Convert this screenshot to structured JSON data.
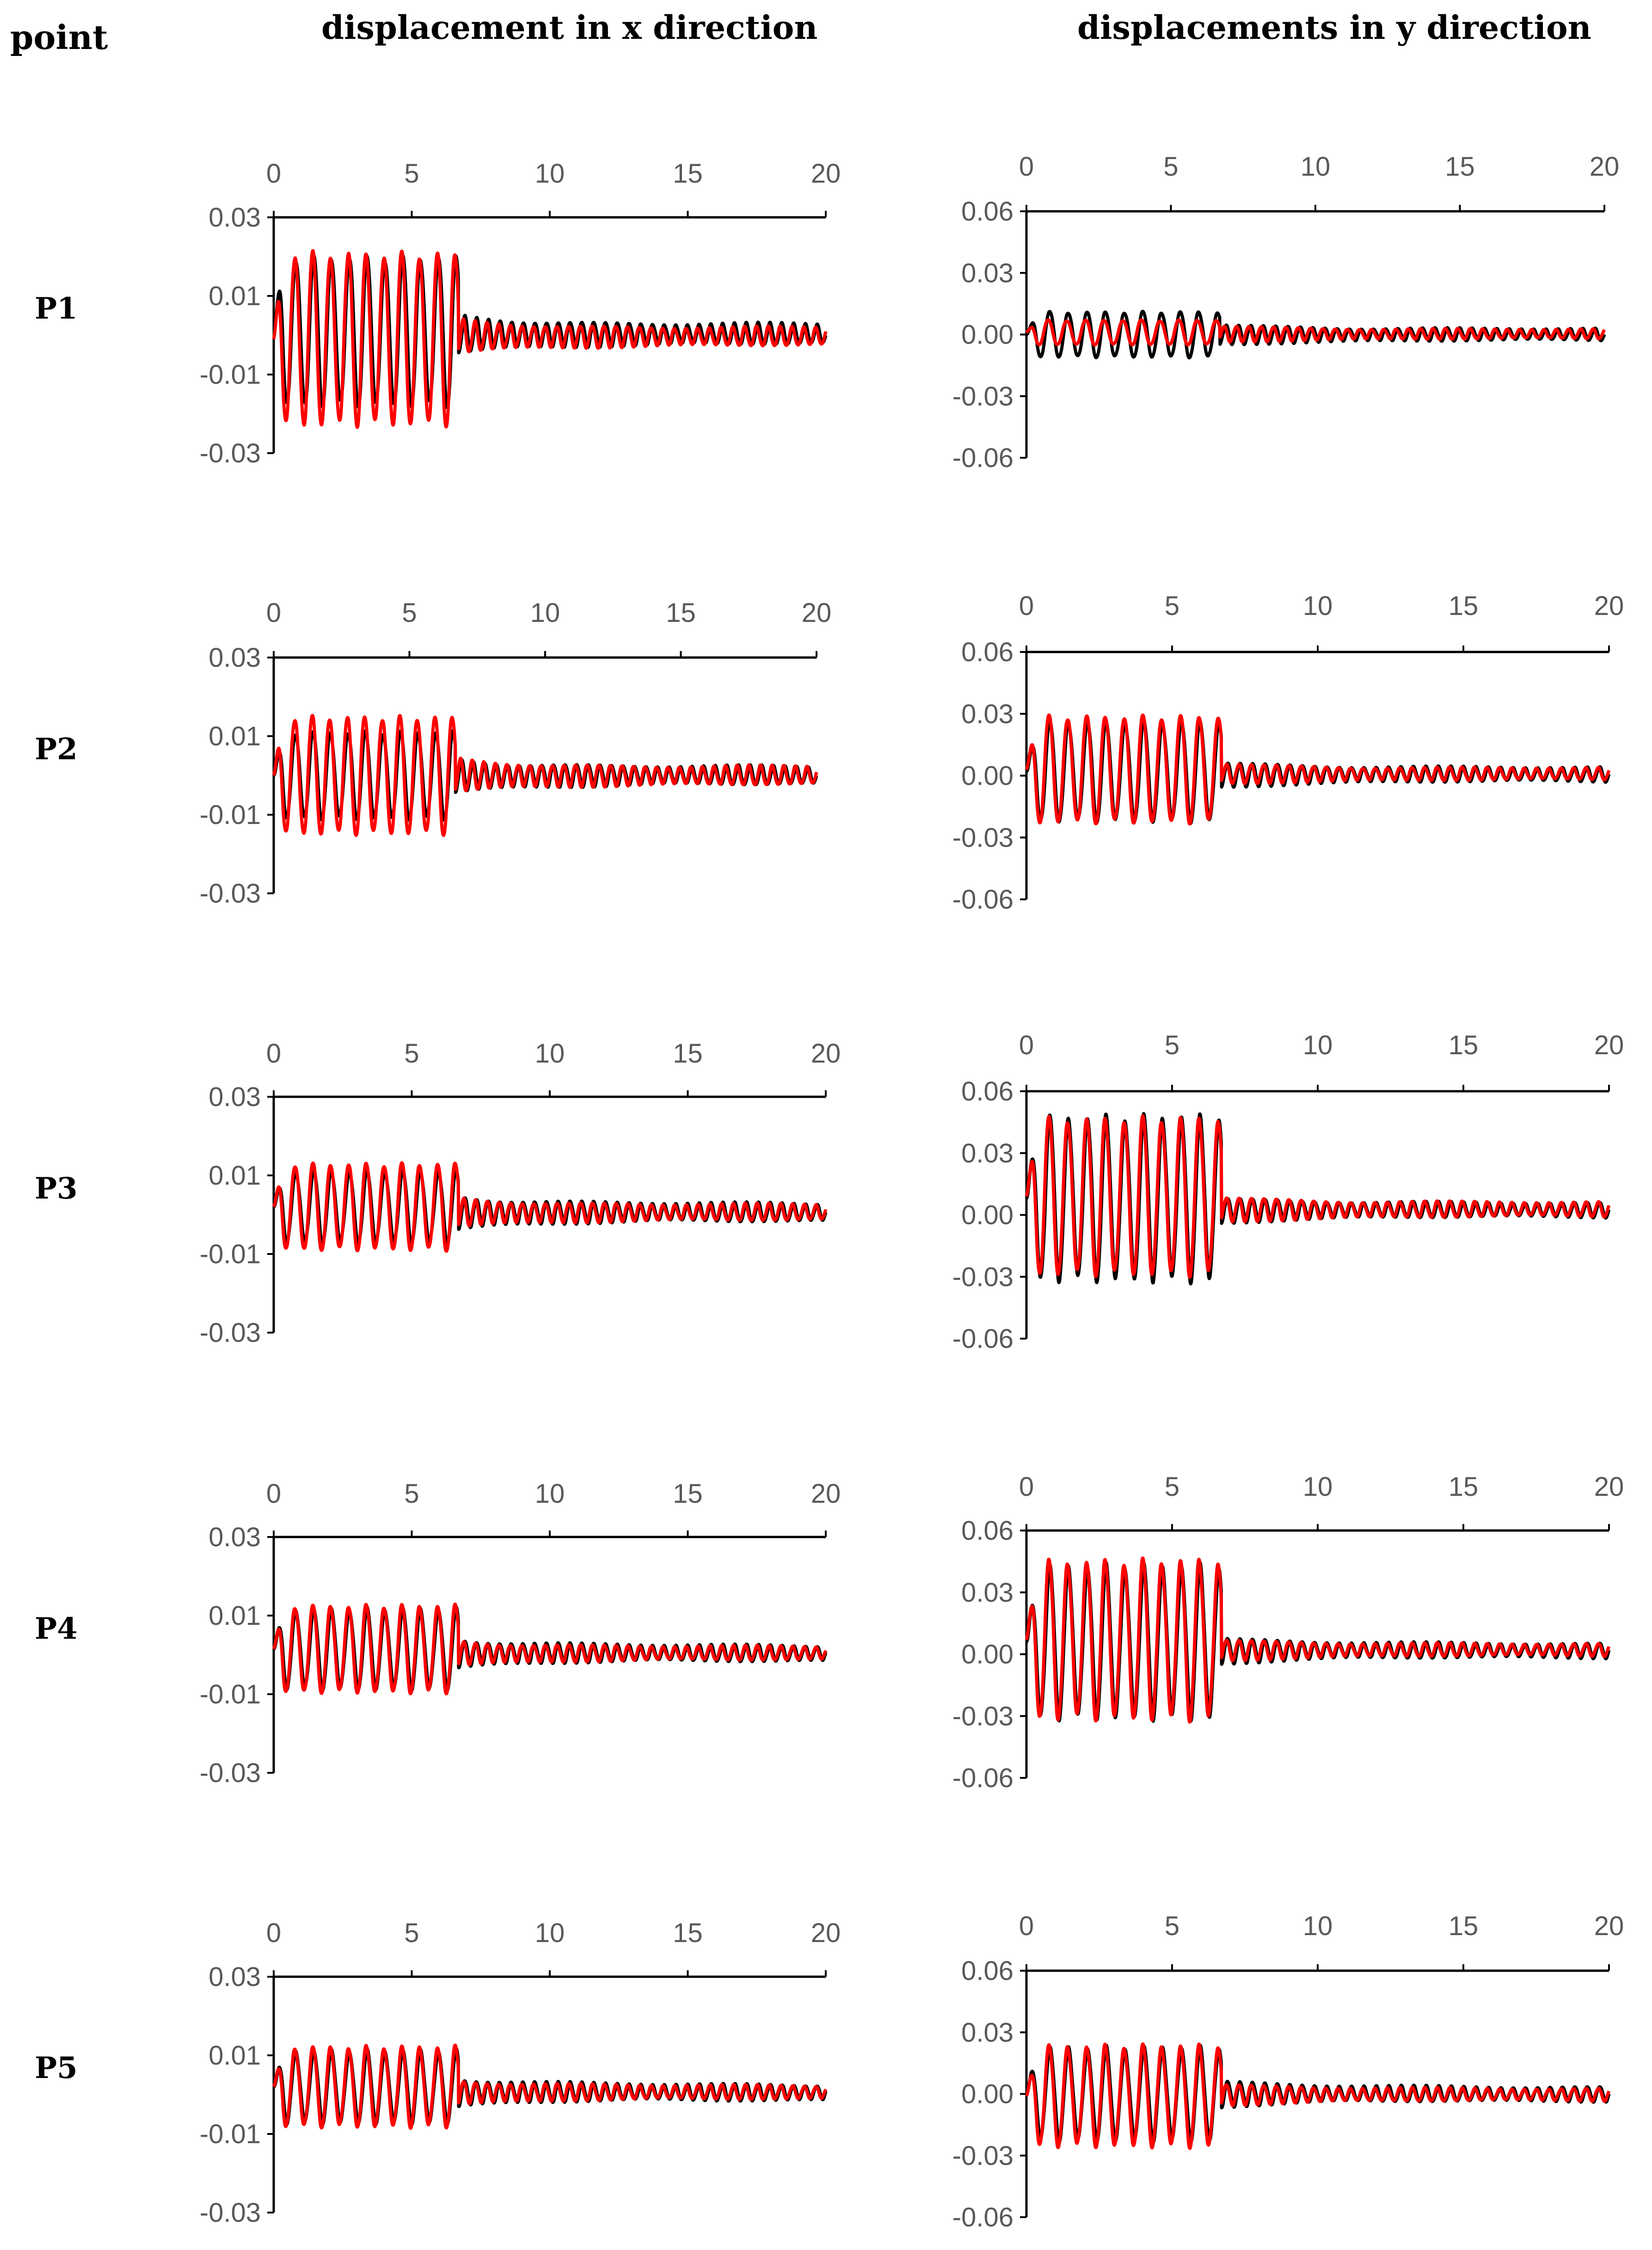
{
  "headers": {
    "point": "point",
    "x": "displacement in x direction",
    "y": "displacements in y direction"
  },
  "colors": {
    "measured": "#000000",
    "computed": "#ff0000",
    "axis": "#000000",
    "tick_text": "#595959"
  },
  "chart_data": [
    {
      "type": "line",
      "point": "P1",
      "component": "x",
      "xlim": [
        0,
        20
      ],
      "ylim": [
        -0.03,
        0.03
      ],
      "xticks": [
        "0",
        "5",
        "10",
        "15",
        "20"
      ],
      "yticks": [
        "0.03",
        "0.01",
        "-0.01",
        "-0.03"
      ],
      "yticksval": [
        0.03,
        0.01,
        -0.01,
        -0.03
      ],
      "series": [
        {
          "name": "black",
          "color": "#000000",
          "amp1": 0.019,
          "offset": 0.001,
          "amp2": 0.0045,
          "phase": 0.0
        },
        {
          "name": "red",
          "color": "#ff0000",
          "amp1": 0.022,
          "offset": -0.001,
          "amp2": 0.004,
          "phase": 0.4
        }
      ]
    },
    {
      "type": "line",
      "point": "P1",
      "component": "y",
      "xlim": [
        0,
        20
      ],
      "ylim": [
        -0.06,
        0.06
      ],
      "xticks": [
        "0",
        "5",
        "10",
        "15",
        "20"
      ],
      "yticks": [
        "0.06",
        "0.03",
        "0.00",
        "-0.03",
        "-0.06"
      ],
      "yticksval": [
        0.06,
        0.03,
        0.0,
        -0.03,
        -0.06
      ],
      "series": [
        {
          "name": "black",
          "color": "#000000",
          "amp1": 0.011,
          "offset": 0.0,
          "amp2": 0.005,
          "phase": 0.0
        },
        {
          "name": "red",
          "color": "#ff0000",
          "amp1": 0.006,
          "offset": 0.001,
          "amp2": 0.004,
          "phase": 0.5
        }
      ]
    },
    {
      "type": "line",
      "point": "P2",
      "component": "x",
      "xlim": [
        0,
        20
      ],
      "ylim": [
        -0.03,
        0.03
      ],
      "xticks": [
        "0",
        "5",
        "10",
        "15",
        "20"
      ],
      "yticks": [
        "0.03",
        "0.01",
        "-0.01",
        "-0.03"
      ],
      "yticksval": [
        0.03,
        0.01,
        -0.01,
        -0.03
      ],
      "series": [
        {
          "name": "black",
          "color": "#000000",
          "amp1": 0.011,
          "offset": 0.0,
          "amp2": 0.004,
          "phase": 0.0
        },
        {
          "name": "red",
          "color": "#ff0000",
          "amp1": 0.015,
          "offset": 0.0,
          "amp2": 0.004,
          "phase": 0.3
        }
      ]
    },
    {
      "type": "line",
      "point": "P2",
      "component": "y",
      "xlim": [
        0,
        20
      ],
      "ylim": [
        -0.06,
        0.06
      ],
      "xticks": [
        "0",
        "5",
        "10",
        "15",
        "20"
      ],
      "yticks": [
        "0.06",
        "0.03",
        "0.00",
        "-0.03",
        "-0.06"
      ],
      "yticksval": [
        0.06,
        0.03,
        0.0,
        -0.03,
        -0.06
      ],
      "series": [
        {
          "name": "black",
          "color": "#000000",
          "amp1": 0.024,
          "offset": 0.002,
          "amp2": 0.006,
          "phase": 0.0
        },
        {
          "name": "red",
          "color": "#ff0000",
          "amp1": 0.026,
          "offset": 0.003,
          "amp2": 0.005,
          "phase": 0.3
        }
      ]
    },
    {
      "type": "line",
      "point": "P3",
      "component": "x",
      "xlim": [
        0,
        20
      ],
      "ylim": [
        -0.03,
        0.03
      ],
      "xticks": [
        "0",
        "5",
        "10",
        "15",
        "20"
      ],
      "yticks": [
        "0.03",
        "0.01",
        "-0.01",
        "-0.03"
      ],
      "yticksval": [
        0.03,
        0.01,
        -0.01,
        -0.03
      ],
      "series": [
        {
          "name": "black",
          "color": "#000000",
          "amp1": 0.009,
          "offset": 0.002,
          "amp2": 0.004,
          "phase": 0.0
        },
        {
          "name": "red",
          "color": "#ff0000",
          "amp1": 0.011,
          "offset": 0.002,
          "amp2": 0.0035,
          "phase": 0.3
        }
      ]
    },
    {
      "type": "line",
      "point": "P3",
      "component": "y",
      "xlim": [
        0,
        20
      ],
      "ylim": [
        -0.06,
        0.06
      ],
      "xticks": [
        "0",
        "5",
        "10",
        "15",
        "20"
      ],
      "yticks": [
        "0.06",
        "0.03",
        "0.00",
        "-0.03",
        "-0.06"
      ],
      "yticksval": [
        0.06,
        0.03,
        0.0,
        -0.03,
        -0.06
      ],
      "series": [
        {
          "name": "black",
          "color": "#000000",
          "amp1": 0.039,
          "offset": 0.008,
          "amp2": 0.006,
          "phase": 0.0
        },
        {
          "name": "red",
          "color": "#ff0000",
          "amp1": 0.038,
          "offset": 0.009,
          "amp2": 0.006,
          "phase": 0.3
        }
      ]
    },
    {
      "type": "line",
      "point": "P4",
      "component": "x",
      "xlim": [
        0,
        20
      ],
      "ylim": [
        -0.03,
        0.03
      ],
      "xticks": [
        "0",
        "5",
        "10",
        "15",
        "20"
      ],
      "yticks": [
        "0.03",
        "0.01",
        "-0.01",
        "-0.03"
      ],
      "yticksval": [
        0.03,
        0.01,
        -0.01,
        -0.03
      ],
      "series": [
        {
          "name": "black",
          "color": "#000000",
          "amp1": 0.01,
          "offset": 0.0015,
          "amp2": 0.0035,
          "phase": 0.0
        },
        {
          "name": "red",
          "color": "#ff0000",
          "amp1": 0.011,
          "offset": 0.0015,
          "amp2": 0.003,
          "phase": 0.3
        }
      ]
    },
    {
      "type": "line",
      "point": "P4",
      "component": "y",
      "xlim": [
        0,
        20
      ],
      "ylim": [
        -0.06,
        0.06
      ],
      "xticks": [
        "0",
        "5",
        "10",
        "15",
        "20"
      ],
      "yticks": [
        "0.06",
        "0.03",
        "0.00",
        "-0.03",
        "-0.06"
      ],
      "yticksval": [
        0.06,
        0.03,
        0.0,
        -0.03,
        -0.06
      ],
      "series": [
        {
          "name": "black",
          "color": "#000000",
          "amp1": 0.036,
          "offset": 0.006,
          "amp2": 0.006,
          "phase": 0.0
        },
        {
          "name": "red",
          "color": "#ff0000",
          "amp1": 0.038,
          "offset": 0.007,
          "amp2": 0.005,
          "phase": 0.3
        }
      ]
    },
    {
      "type": "line",
      "point": "P5",
      "component": "x",
      "xlim": [
        0,
        20
      ],
      "ylim": [
        -0.03,
        0.03
      ],
      "xticks": [
        "0",
        "5",
        "10",
        "15",
        "20"
      ],
      "yticks": [
        "0.03",
        "0.01",
        "-0.01",
        "-0.03"
      ],
      "yticksval": [
        0.03,
        0.01,
        -0.01,
        -0.03
      ],
      "series": [
        {
          "name": "black",
          "color": "#000000",
          "amp1": 0.009,
          "offset": 0.002,
          "amp2": 0.0035,
          "phase": 0.0
        },
        {
          "name": "red",
          "color": "#ff0000",
          "amp1": 0.01,
          "offset": 0.002,
          "amp2": 0.003,
          "phase": 0.3
        }
      ]
    },
    {
      "type": "line",
      "point": "P5",
      "component": "y",
      "xlim": [
        0,
        20
      ],
      "ylim": [
        -0.06,
        0.06
      ],
      "xticks": [
        "0",
        "5",
        "10",
        "15",
        "20"
      ],
      "yticks": [
        "0.06",
        "0.03",
        "0.00",
        "-0.03",
        "-0.06"
      ],
      "yticksval": [
        0.06,
        0.03,
        0.0,
        -0.03,
        -0.06
      ],
      "series": [
        {
          "name": "black",
          "color": "#000000",
          "amp1": 0.022,
          "offset": 0.0,
          "amp2": 0.006,
          "phase": 0.0
        },
        {
          "name": "red",
          "color": "#ff0000",
          "amp1": 0.024,
          "offset": -0.001,
          "amp2": 0.005,
          "phase": 0.3
        }
      ]
    }
  ]
}
